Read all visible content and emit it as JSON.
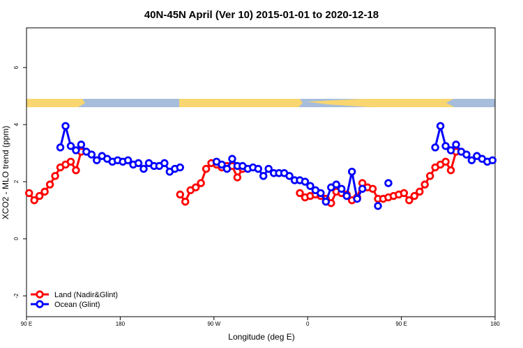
{
  "chart_data": {
    "type": "line",
    "title": "40N-45N April (Ver 10)   2015-01-01 to 2020-12-18",
    "x_label": "Longitude (deg E)",
    "y_label": "XCO2 - MLO trend (ppm)",
    "x": [
      92.5,
      97.5,
      102.5,
      107.5,
      112.5,
      117.5,
      122.5,
      127.5,
      132.5,
      137.5,
      142.5,
      147.5,
      152.5,
      157.5,
      162.5,
      167.5,
      172.5,
      177.5,
      182.5,
      187.5,
      192.5,
      197.5,
      202.5,
      207.5,
      212.5,
      217.5,
      222.5,
      227.5,
      232.5,
      237.5,
      242.5,
      247.5,
      252.5,
      257.5,
      262.5,
      267.5,
      272.5,
      277.5,
      282.5,
      287.5,
      292.5,
      297.5,
      302.5,
      307.5,
      312.5,
      317.5,
      322.5,
      327.5,
      332.5,
      337.5,
      342.5,
      347.5,
      352.5,
      357.5,
      362.5,
      367.5,
      372.5,
      377.5,
      382.5,
      387.5,
      392.5,
      397.5,
      402.5,
      407.5,
      412.5,
      417.5,
      422.5,
      427.5,
      432.5,
      437.5,
      442.5,
      447.5,
      452.5,
      457.5,
      462.5,
      467.5,
      472.5,
      477.5,
      482.5,
      487.5,
      492.5,
      497.5,
      502.5,
      507.5,
      512.5,
      517.5,
      522.5,
      527.5,
      532.5,
      537.5
    ],
    "series": [
      {
        "name": "Land (Nadir&Glint)",
        "color": "#ff0000",
        "values": [
          1.6,
          1.35,
          1.5,
          1.65,
          1.9,
          2.2,
          2.5,
          2.6,
          2.7,
          2.4,
          3.05,
          null,
          null,
          null,
          null,
          null,
          null,
          null,
          null,
          null,
          null,
          null,
          null,
          null,
          null,
          null,
          null,
          null,
          null,
          1.55,
          1.3,
          1.7,
          1.8,
          1.95,
          2.45,
          2.65,
          2.6,
          2.5,
          2.55,
          2.55,
          2.15,
          2.45,
          null,
          null,
          null,
          null,
          null,
          null,
          null,
          null,
          null,
          null,
          1.6,
          1.45,
          1.5,
          1.55,
          1.5,
          1.4,
          1.25,
          1.65,
          1.6,
          1.55,
          1.35,
          1.45,
          1.95,
          1.8,
          1.75,
          1.4,
          1.4,
          1.45,
          1.5,
          1.55,
          1.6,
          1.35,
          1.5,
          1.65,
          1.9,
          2.2,
          2.5,
          2.6,
          2.7,
          2.4,
          3.05,
          null,
          null,
          null,
          null,
          null,
          null,
          null
        ]
      },
      {
        "name": "Ocean (Glint)",
        "color": "#0000ff",
        "values": [
          null,
          null,
          null,
          null,
          null,
          null,
          3.2,
          3.95,
          3.25,
          3.1,
          3.3,
          3.05,
          2.95,
          2.75,
          2.9,
          2.8,
          2.7,
          2.75,
          2.7,
          2.75,
          2.6,
          2.65,
          2.45,
          2.65,
          2.55,
          2.55,
          2.65,
          2.35,
          2.45,
          2.5,
          null,
          null,
          null,
          null,
          null,
          null,
          2.7,
          2.6,
          2.45,
          2.8,
          2.55,
          2.55,
          2.45,
          2.5,
          2.45,
          2.2,
          2.45,
          2.3,
          2.3,
          2.3,
          2.2,
          2.05,
          2.05,
          2.0,
          1.85,
          1.7,
          1.6,
          1.3,
          1.8,
          1.9,
          1.75,
          1.5,
          2.35,
          1.4,
          1.75,
          null,
          null,
          1.15,
          null,
          1.95,
          null,
          null,
          null,
          null,
          null,
          null,
          null,
          null,
          3.2,
          3.95,
          3.25,
          3.1,
          3.3,
          3.05,
          2.95,
          2.75,
          2.9,
          2.8,
          2.7,
          2.75
        ]
      }
    ],
    "xlim": [
      90,
      540
    ],
    "xticks": [
      {
        "value": 90,
        "label": "90 E"
      },
      180,
      {
        "value": 270,
        "label": "90 W"
      },
      {
        "value": 360,
        "label": "0"
      },
      {
        "value": 450,
        "label": "90 E"
      },
      {
        "value": 540,
        "label": "180"
      }
    ],
    "ylim": [
      -2.73,
      7.39
    ],
    "yticks": [
      -2,
      0,
      2,
      4,
      6
    ],
    "legend": "bottom-left"
  }
}
